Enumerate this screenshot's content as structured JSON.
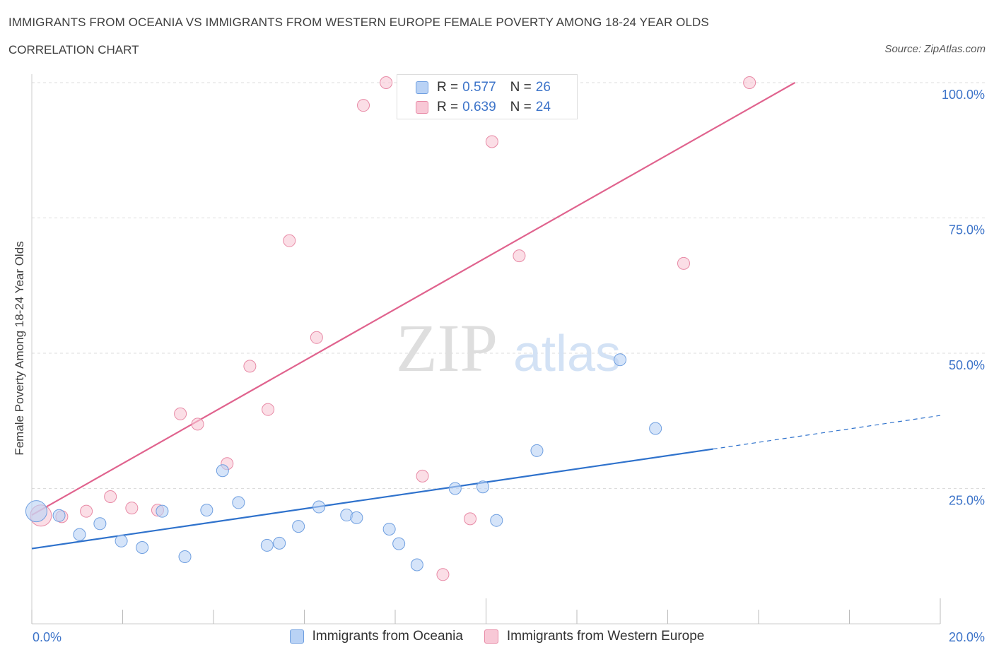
{
  "header": {
    "title": "IMMIGRANTS FROM OCEANIA VS IMMIGRANTS FROM WESTERN EUROPE FEMALE POVERTY AMONG 18-24 YEAR OLDS",
    "subtitle": "CORRELATION CHART",
    "source": "Source: ZipAtlas.com"
  },
  "watermark": {
    "zip": "ZIP",
    "atlas": "atlas"
  },
  "legend": {
    "series1": {
      "r_label": "R = ",
      "r_value": "0.577",
      "n_label": "N = ",
      "n_value": "26"
    },
    "series2": {
      "r_label": "R = ",
      "r_value": "0.639",
      "n_label": "N = ",
      "n_value": "24"
    }
  },
  "colors": {
    "blue_fill": "#b9d2f5",
    "blue_stroke": "#6f9fe0",
    "blue_line": "#2f72cc",
    "pink_fill": "#f8c8d6",
    "pink_stroke": "#e88aa6",
    "pink_line": "#e0638e",
    "tick_label": "#3d74c9",
    "grid": "#dcdcdc"
  },
  "chart_data": {
    "type": "scatter",
    "title": "IMMIGRANTS FROM OCEANIA VS IMMIGRANTS FROM WESTERN EUROPE FEMALE POVERTY AMONG 18-24 YEAR OLDS",
    "xlabel": "",
    "ylabel": "Female Poverty Among 18-24 Year Olds",
    "xlim": [
      0,
      20
    ],
    "ylim": [
      0,
      100
    ],
    "x_tick_labels": [
      "0.0%",
      "20.0%"
    ],
    "y_ticks": [
      25,
      50,
      75,
      100
    ],
    "y_tick_labels": [
      "25.0%",
      "50.0%",
      "75.0%",
      "100.0%"
    ],
    "grid": true,
    "legend_position": "top-center",
    "series": [
      {
        "name": "Immigrants from Oceania",
        "color": "#6f9fe0",
        "R": 0.577,
        "N": 26,
        "points": [
          [
            0.1,
            20.8,
            2
          ],
          [
            0.6,
            20.0,
            1
          ],
          [
            1.05,
            16.5,
            1
          ],
          [
            1.5,
            18.5,
            1
          ],
          [
            1.97,
            15.3,
            1
          ],
          [
            2.43,
            14.1,
            1
          ],
          [
            2.87,
            20.8,
            1
          ],
          [
            3.37,
            12.4,
            1
          ],
          [
            3.85,
            21.0,
            1
          ],
          [
            4.2,
            28.3,
            1
          ],
          [
            4.55,
            22.4,
            1
          ],
          [
            5.18,
            14.5,
            1
          ],
          [
            5.45,
            14.9,
            1
          ],
          [
            5.87,
            18.0,
            1
          ],
          [
            6.32,
            21.6,
            1
          ],
          [
            6.93,
            20.1,
            1
          ],
          [
            7.15,
            19.6,
            1
          ],
          [
            7.87,
            17.5,
            1
          ],
          [
            8.08,
            14.8,
            1
          ],
          [
            8.48,
            10.9,
            1
          ],
          [
            9.32,
            25.0,
            1
          ],
          [
            9.93,
            25.3,
            1
          ],
          [
            10.23,
            19.1,
            1
          ],
          [
            11.12,
            32.0,
            1
          ],
          [
            12.95,
            48.8,
            1
          ],
          [
            13.73,
            36.1,
            1
          ]
        ]
      },
      {
        "name": "Immigrants from Western Europe",
        "color": "#e88aa6",
        "R": 0.639,
        "N": 24,
        "points": [
          [
            0.2,
            20.0,
            2
          ],
          [
            0.66,
            19.8,
            1
          ],
          [
            1.2,
            20.8,
            1
          ],
          [
            1.73,
            23.5,
            1
          ],
          [
            2.2,
            21.4,
            1
          ],
          [
            2.77,
            21.0,
            1
          ],
          [
            3.27,
            38.8,
            1
          ],
          [
            3.65,
            36.9,
            1
          ],
          [
            4.3,
            29.6,
            1
          ],
          [
            4.8,
            47.6,
            1
          ],
          [
            5.2,
            39.6,
            1
          ],
          [
            5.67,
            70.8,
            1
          ],
          [
            6.27,
            52.9,
            1
          ],
          [
            7.3,
            95.8,
            1
          ],
          [
            7.8,
            100.0,
            1
          ],
          [
            8.2,
            100.0,
            1
          ],
          [
            8.6,
            27.3,
            1
          ],
          [
            9.05,
            9.1,
            1
          ],
          [
            9.65,
            19.4,
            1
          ],
          [
            10.13,
            89.1,
            1
          ],
          [
            10.73,
            68.0,
            1
          ],
          [
            11.8,
            100.0,
            1
          ],
          [
            14.35,
            66.6,
            1
          ],
          [
            15.8,
            100.0,
            1
          ]
        ]
      }
    ],
    "trendlines": [
      {
        "series": "Immigrants from Oceania",
        "x0": 0,
        "y0": 13.9,
        "x1": 15.0,
        "y1": 32.3,
        "dashed_to_x": 20.0,
        "dashed_to_y": 38.5
      },
      {
        "series": "Immigrants from Western Europe",
        "x0": 0,
        "y0": 20.1,
        "x1": 16.8,
        "y1": 100.0
      }
    ]
  }
}
